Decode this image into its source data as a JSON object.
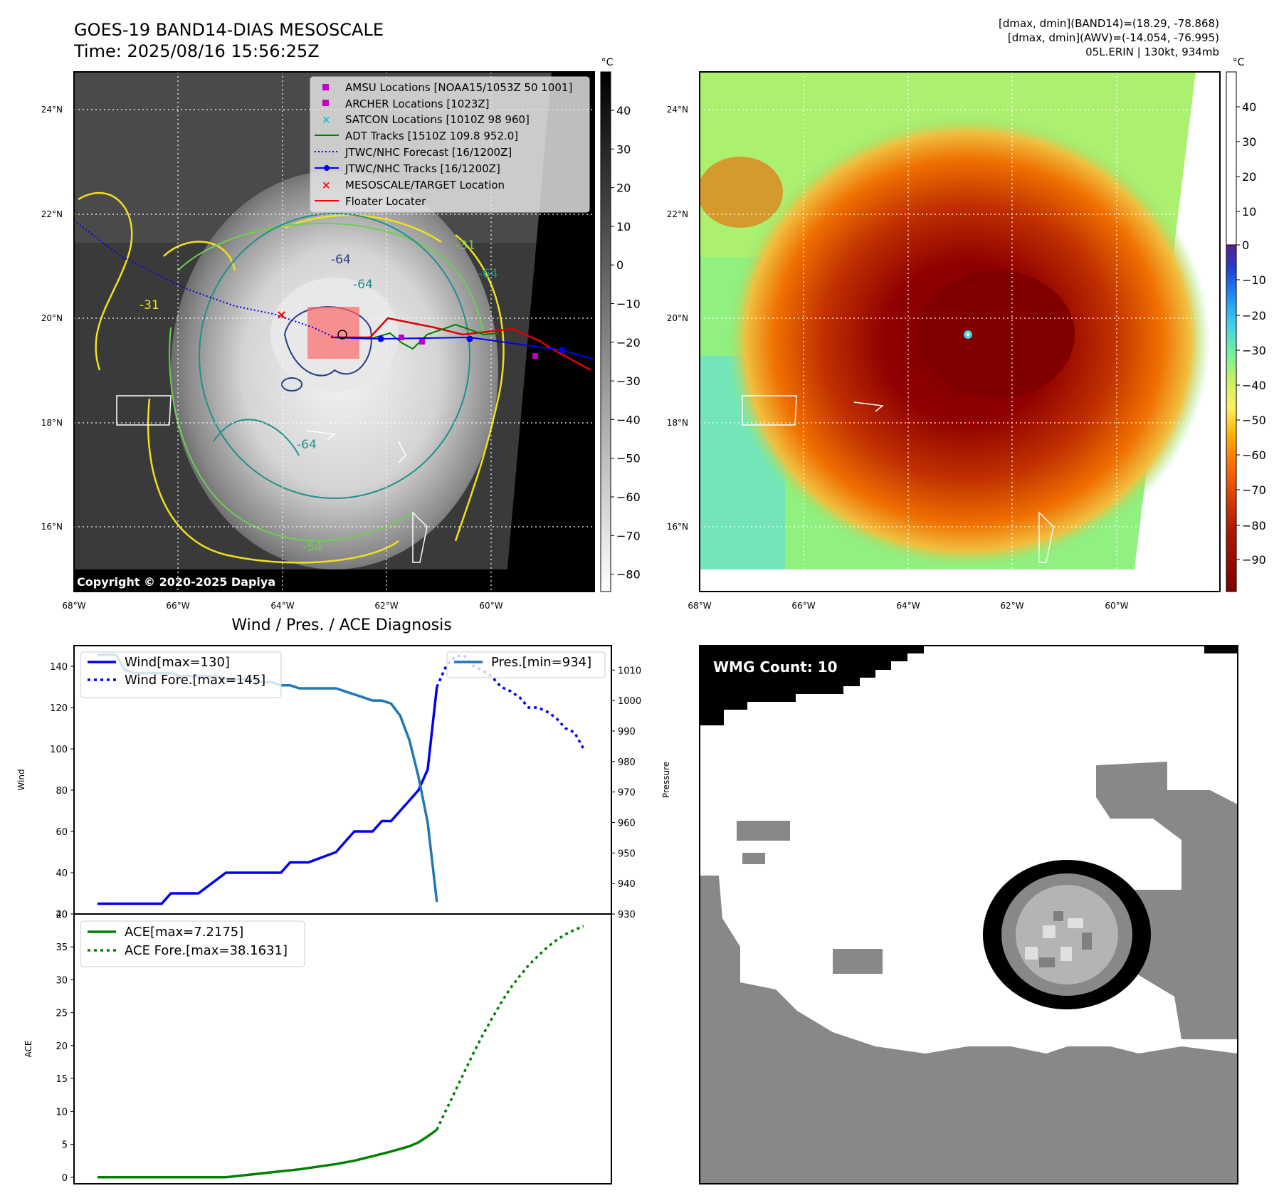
{
  "header": {
    "title_line1": "GOES-19 BAND14-DIAS MESOSCALE",
    "title_line2": "Time: 2025/08/16 15:56:25Z",
    "info_line1": "[dmax, dmin](BAND14)=(18.29, -78.868)",
    "info_line2": "[dmax, dmin](AWV)=(-14.054, -76.995)",
    "info_line3": "05L.ERIN | 130kt, 934mb"
  },
  "map_panel": {
    "lat_labels": [
      "24°N",
      "22°N",
      "20°N",
      "18°N",
      "16°N"
    ],
    "lon_labels": [
      "68°W",
      "66°W",
      "64°W",
      "62°W",
      "60°W"
    ],
    "copyright": "Copyright © 2020-2025 Dapiya",
    "contour_labels": [
      "-64",
      "-64",
      "-64",
      "-31",
      "-64",
      "-54",
      "-31"
    ],
    "gray_colorbar": {
      "unit": "°C",
      "ticks": [
        "40",
        "30",
        "20",
        "10",
        "0",
        "−10",
        "−20",
        "−30",
        "−40",
        "−50",
        "−60",
        "−70",
        "−80"
      ]
    },
    "color_colorbar": {
      "unit": "°C",
      "ticks": [
        "40",
        "30",
        "20",
        "10",
        "0",
        "−10",
        "−20",
        "−30",
        "−40",
        "−50",
        "−60",
        "−70",
        "−80",
        "−90"
      ]
    },
    "legend": [
      {
        "label": "AMSU Locations [NOAA15/1053Z 50 1001]",
        "symbol": "square",
        "color": "#c000c0"
      },
      {
        "label": "ARCHER Locations [1023Z]",
        "symbol": "square",
        "color": "#c000c0"
      },
      {
        "label": "SATCON Locations [1010Z 98 960]",
        "symbol": "x",
        "color": "#20c0c0"
      },
      {
        "label": "ADT Tracks [1510Z 109.8 952.0]",
        "symbol": "line",
        "color": "#008000"
      },
      {
        "label": "JTWC/NHC Forecast [16/1200Z]",
        "symbol": "dotted",
        "color": "#0000ee"
      },
      {
        "label": "JTWC/NHC Tracks [16/1200Z]",
        "symbol": "line-dot",
        "color": "#0000ee"
      },
      {
        "label": "MESOSCALE/TARGET Location",
        "symbol": "x",
        "color": "#ff0000"
      },
      {
        "label": "Floater Locater",
        "symbol": "line",
        "color": "#ff0000"
      }
    ]
  },
  "wmg_panel": {
    "label": "WMG Count: 10"
  },
  "chart_data": [
    {
      "type": "line",
      "title": "Wind / Pres. / ACE Diagnosis",
      "ylabel": "Wind",
      "ylabel_right": "Pressure",
      "ylim": [
        20,
        150
      ],
      "ylim_right": [
        930,
        1018
      ],
      "yticks": [
        20,
        40,
        60,
        80,
        100,
        120,
        140
      ],
      "yticks_right": [
        930,
        940,
        950,
        960,
        970,
        980,
        990,
        1000,
        1010
      ],
      "x_index_range": [
        0,
        53
      ],
      "series": [
        {
          "name": "Wind[max=130]",
          "style": "solid",
          "color": "#0000ee",
          "axis": "left",
          "x": [
            0,
            7,
            8,
            10,
            11,
            14,
            15,
            20,
            21,
            22,
            23,
            26,
            27,
            28,
            30,
            31,
            32,
            33,
            34,
            35,
            36,
            37
          ],
          "y": [
            25,
            25,
            30,
            30,
            30,
            40,
            40,
            40,
            45,
            45,
            45,
            50,
            55,
            60,
            60,
            65,
            65,
            70,
            75,
            80,
            90,
            130
          ]
        },
        {
          "name": "Wind Fore.[max=145]",
          "style": "dotted",
          "color": "#0000ee",
          "axis": "left",
          "x": [
            37,
            38,
            39,
            40,
            41,
            42,
            43,
            44,
            45,
            46,
            47,
            48,
            49,
            50,
            51,
            52,
            53
          ],
          "y": [
            130,
            140,
            145,
            145,
            140,
            138,
            135,
            130,
            128,
            125,
            120,
            120,
            118,
            115,
            110,
            108,
            100
          ]
        },
        {
          "name": "Pres.[min=934]",
          "style": "solid",
          "color": "#1f77b4",
          "axis": "right",
          "x": [
            0,
            1,
            2,
            3,
            4,
            5,
            6,
            7,
            8,
            9,
            10,
            11,
            12,
            13,
            14,
            15,
            16,
            17,
            18,
            19,
            20,
            21,
            22,
            23,
            24,
            25,
            26,
            27,
            28,
            29,
            30,
            31,
            32,
            33,
            34,
            35,
            36,
            37
          ],
          "y": [
            1015,
            1015,
            1015,
            1010,
            1009,
            1009,
            1009,
            1009,
            1009,
            1008,
            1008,
            1008,
            1008,
            1008,
            1007,
            1007,
            1007,
            1007,
            1006,
            1006,
            1005,
            1005,
            1004,
            1004,
            1004,
            1004,
            1004,
            1003,
            1002,
            1001,
            1000,
            1000,
            999,
            995,
            987,
            975,
            960,
            934
          ]
        }
      ]
    },
    {
      "type": "line",
      "ylabel": "ACE",
      "ylim": [
        -1,
        40
      ],
      "yticks": [
        0,
        5,
        10,
        15,
        20,
        25,
        30,
        35,
        40
      ],
      "x_index_range": [
        0,
        53
      ],
      "series": [
        {
          "name": "ACE[max=7.2175]",
          "style": "solid",
          "color": "#008000",
          "x": [
            0,
            10,
            14,
            18,
            22,
            26,
            28,
            30,
            32,
            34,
            35,
            36,
            37
          ],
          "y": [
            0,
            0,
            0,
            0.6,
            1.2,
            2.0,
            2.5,
            3.2,
            3.9,
            4.7,
            5.3,
            6.2,
            7.2175
          ]
        },
        {
          "name": "ACE Fore.[max=38.1631]",
          "style": "dotted",
          "color": "#008000",
          "x": [
            37,
            38,
            39,
            40,
            41,
            42,
            43,
            44,
            45,
            46,
            47,
            48,
            49,
            50,
            51,
            52,
            53
          ],
          "y": [
            7.2175,
            10.2,
            13.1,
            16.0,
            18.9,
            21.6,
            24.1,
            26.5,
            28.7,
            30.5,
            32.2,
            33.6,
            34.9,
            36.0,
            36.9,
            37.6,
            38.1631
          ]
        }
      ]
    }
  ]
}
